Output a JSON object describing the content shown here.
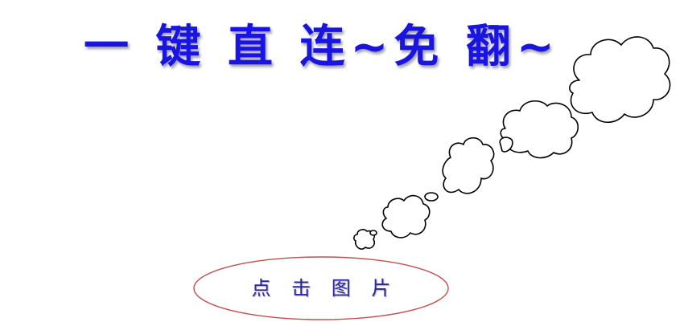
{
  "headline": {
    "text": "一 键 直 连~免 翻~",
    "color": "#1a14e0"
  },
  "thought_bubble": {
    "icon": "thought-bubble-icon",
    "stroke_color": "#000000"
  },
  "cta": {
    "label": "点 击 图 片",
    "label_color": "#2a26a6",
    "border_color": "#c0504d"
  }
}
